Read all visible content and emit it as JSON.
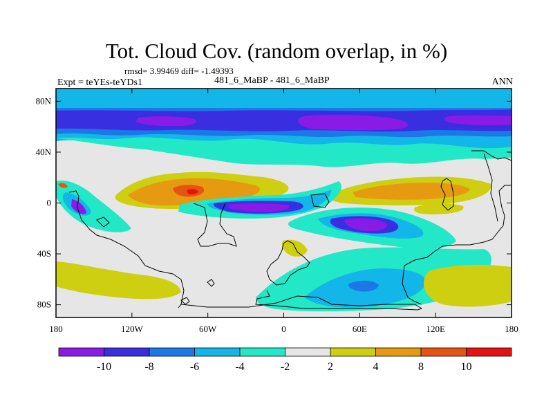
{
  "chart_data": {
    "type": "heatmap",
    "title": "Tot. Cloud Cov. (random overlap, in %)",
    "stats": "rmsd= 3.99469 diff= -1.49393",
    "left_label": "Expt = teYEs-teYDs1",
    "center_label": "481_6_MaBP - 481_6_MaBP",
    "right_label": "ANN",
    "x_ticks": [
      "180",
      "120W",
      "60W",
      "0",
      "60E",
      "120E",
      "180"
    ],
    "y_ticks": [
      "80N",
      "40N",
      "0",
      "40S",
      "80S"
    ],
    "xlim": [
      -180,
      180
    ],
    "ylim": [
      -90,
      90
    ],
    "colorbar": {
      "labels": [
        "-10",
        "-8",
        "-6",
        "-4",
        "-2",
        "2",
        "4",
        "8",
        "10"
      ],
      "colors": [
        "#8a1be6",
        "#3a2fe0",
        "#1c78e6",
        "#12b6e8",
        "#22e8c8",
        "#e6e6e6",
        "#cfcf12",
        "#e69a12",
        "#e65412",
        "#e61212"
      ]
    },
    "colors": {
      "background_field": "#e6e6e6",
      "coastline": "#000000"
    }
  }
}
